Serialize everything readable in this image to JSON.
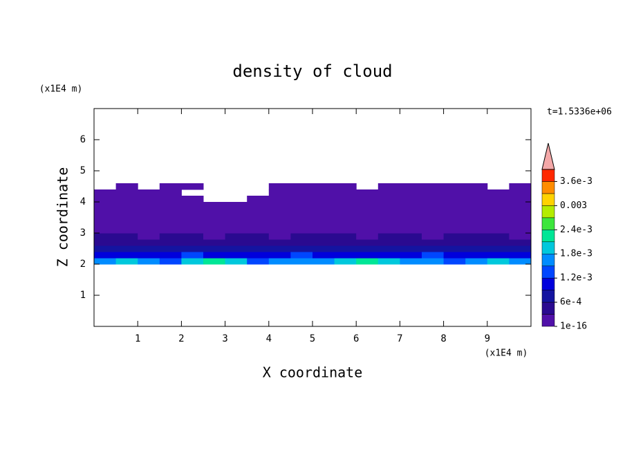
{
  "chart_data": {
    "type": "contour",
    "title": "density of cloud",
    "x_label": "X coordinate",
    "y_label": "Z coordinate",
    "x_unit": "(x1E4 m)",
    "y_unit": "(x1E4 m)",
    "time_label": "t=1.5336e+06",
    "xlim": [
      0,
      10
    ],
    "ylim": [
      0,
      7
    ],
    "xticks": [
      1,
      2,
      3,
      4,
      5,
      6,
      7,
      8,
      9
    ],
    "yticks": [
      1,
      2,
      3,
      4,
      5,
      6
    ],
    "x": [
      0.25,
      0.75,
      1.25,
      1.75,
      2.25,
      2.75,
      3.25,
      3.75,
      4.25,
      4.75,
      5.25,
      5.75,
      6.25,
      6.75,
      7.25,
      7.75,
      8.25,
      8.75,
      9.25,
      9.75
    ],
    "y": [
      2.1,
      2.3,
      2.5,
      2.7,
      2.9,
      3.1,
      3.3,
      3.5,
      3.7,
      3.9,
      4.1,
      4.3,
      4.5
    ],
    "z": [
      [
        0.0015,
        0.0018,
        0.0016,
        0.0014,
        0.002,
        0.0022,
        0.0018,
        0.0014,
        0.0016,
        0.0017,
        0.0015,
        0.0019,
        0.0022,
        0.0018,
        0.0015,
        0.0016,
        0.0014,
        0.0017,
        0.002,
        0.0016
      ],
      [
        0.0009,
        0.001,
        0.0011,
        0.0009,
        0.0012,
        0.001,
        0.0009,
        0.0011,
        0.001,
        0.0012,
        0.0009,
        0.001,
        0.0011,
        0.0009,
        0.001,
        0.0012,
        0.0011,
        0.0009,
        0.001,
        0.0011
      ],
      [
        0.0006,
        0.0007,
        0.0006,
        0.0008,
        0.0007,
        0.0006,
        0.0007,
        0.0008,
        0.0006,
        0.0007,
        0.0006,
        0.0007,
        0.0008,
        0.0006,
        0.0007,
        0.0006,
        0.0008,
        0.0007,
        0.0006,
        0.0007
      ],
      [
        0.0004,
        0.0005,
        0.0004,
        0.0004,
        0.0005,
        0.0004,
        0.0003,
        0.0004,
        0.0005,
        0.0004,
        0.0004,
        0.0005,
        0.0004,
        0.0004,
        0.0003,
        0.0004,
        0.0005,
        0.0004,
        0.0004,
        0.0005
      ],
      [
        0.0003,
        0.0003,
        0.0002,
        0.0003,
        0.0003,
        0.0002,
        0.0003,
        0.0003,
        0.0002,
        0.0003,
        0.0003,
        0.0003,
        0.0002,
        0.0003,
        0.0003,
        0.0002,
        0.0003,
        0.0003,
        0.0003,
        0.0002
      ],
      [
        0.0002,
        0.0002,
        0.0002,
        0.0002,
        0.0002,
        0.0002,
        0.0002,
        0.0002,
        0.0002,
        0.0002,
        0.0002,
        0.0002,
        0.0002,
        0.0002,
        0.0002,
        0.0002,
        0.0002,
        0.0002,
        0.0002,
        0.0002
      ],
      [
        0.0001,
        0.0001,
        0.0001,
        0.0001,
        0.0001,
        0.0001,
        0.0001,
        0.0001,
        0.0001,
        0.0001,
        0.0001,
        0.0001,
        0.0001,
        0.0001,
        0.0001,
        0.0001,
        0.0001,
        0.0001,
        0.0001,
        0.0001
      ],
      [
        0.0001,
        0.0001,
        0.0001,
        0.0001,
        0.0001,
        0.0001,
        0.0001,
        0.0001,
        0.0001,
        0.0001,
        0.0001,
        0.0001,
        0.0001,
        0.0001,
        0.0001,
        0.0001,
        0.0001,
        0.0001,
        0.0001,
        0.0001
      ],
      [
        0.0001,
        0.0001,
        0.0001,
        0.0001,
        0.0001,
        0.0001,
        0.0001,
        0.0001,
        0.0001,
        0.0001,
        0.0001,
        0.0001,
        0.0001,
        0.0001,
        0.0001,
        0.0001,
        0.0001,
        0.0001,
        0.0001,
        0.0001
      ],
      [
        0.0001,
        0.0001,
        0.0001,
        0.0001,
        0.0001,
        0.0001,
        0.0001,
        0.0001,
        0.0001,
        0.0001,
        0.0001,
        0.0001,
        0.0001,
        0.0001,
        0.0001,
        0.0001,
        0.0001,
        0.0001,
        0.0001,
        0.0001
      ],
      [
        0.0001,
        0.0001,
        0.0001,
        0.0001,
        0.0001,
        null,
        null,
        0.0001,
        0.0001,
        0.0001,
        0.0001,
        0.0001,
        0.0001,
        0.0001,
        0.0001,
        0.0001,
        0.0001,
        0.0001,
        0.0001,
        0.0001
      ],
      [
        0.0001,
        0.0001,
        0.0001,
        0.0001,
        null,
        null,
        null,
        null,
        0.0001,
        0.0001,
        0.0001,
        0.0001,
        0.0001,
        0.0001,
        0.0001,
        0.0001,
        0.0001,
        0.0001,
        0.0001,
        0.0001
      ],
      [
        null,
        0.0001,
        null,
        0.0001,
        0.0001,
        null,
        null,
        null,
        0.0001,
        0.0001,
        0.0001,
        0.0001,
        null,
        0.0001,
        0.0001,
        0.0001,
        0.0001,
        0.0001,
        null,
        0.0001
      ]
    ],
    "levels": [
      1e-16,
      0.0003,
      0.0006,
      0.0009,
      0.0012,
      0.0015,
      0.0018,
      0.0021,
      0.0024,
      0.0027,
      0.003,
      0.0033,
      0.0036
    ],
    "colors": [
      "#5010a8",
      "#2a0a90",
      "#1414a0",
      "#0000dc",
      "#0046ff",
      "#008cff",
      "#00c8dc",
      "#00e696",
      "#3ce63c",
      "#b4ec00",
      "#ffd200",
      "#ff8c00",
      "#ff2800"
    ],
    "extend_color": "#f4a8a8",
    "cticks": [
      {
        "value": 1e-16,
        "label": "1e-16"
      },
      {
        "value": 0.0006,
        "label": "6e-4"
      },
      {
        "value": 0.0012,
        "label": "1.2e-3"
      },
      {
        "value": 0.0018,
        "label": "1.8e-3"
      },
      {
        "value": 0.0024,
        "label": "2.4e-3"
      },
      0.003,
      {
        "value": 0.0036,
        "label": "3.6e-3"
      }
    ]
  }
}
